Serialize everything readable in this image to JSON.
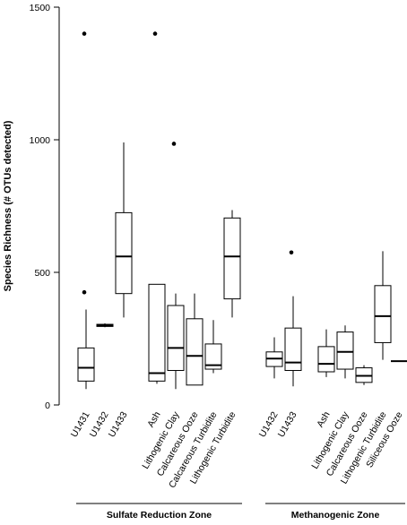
{
  "chart_data": {
    "type": "boxplot",
    "ylabel": "Species Richness (# OTUs detected)",
    "ylim": [
      0,
      1500
    ],
    "y_ticks": [
      0,
      500,
      1000,
      1500
    ],
    "grid": false,
    "groups": [
      {
        "name": "Sulfate Reduction Zone",
        "categories": [
          {
            "label": "U1431",
            "whisker_low": 60,
            "q1": 90,
            "median": 140,
            "q3": 215,
            "whisker_high": 360,
            "outliers": [
              1400,
              425
            ]
          },
          {
            "label": "U1432",
            "whisker_low": 293,
            "q1": 296,
            "median": 300,
            "q3": 304,
            "whisker_high": 308,
            "outliers": []
          },
          {
            "label": "U1433",
            "whisker_low": 330,
            "q1": 420,
            "median": 560,
            "q3": 725,
            "whisker_high": 990,
            "outliers": []
          },
          {
            "label": "Ash",
            "whisker_low": 80,
            "q1": 90,
            "median": 120,
            "q3": 455,
            "whisker_high": 455,
            "outliers": [
              1400
            ]
          },
          {
            "label": "Lithogenic Clay",
            "whisker_low": 60,
            "q1": 130,
            "median": 215,
            "q3": 375,
            "whisker_high": 420,
            "outliers": [
              985
            ]
          },
          {
            "label": "Calcareous Ooze",
            "whisker_low": 75,
            "q1": 75,
            "median": 185,
            "q3": 325,
            "whisker_high": 420,
            "outliers": []
          },
          {
            "label": "Calcareous Turbidite",
            "whisker_low": 120,
            "q1": 135,
            "median": 150,
            "q3": 230,
            "whisker_high": 320,
            "outliers": []
          },
          {
            "label": "Lithogenic Turbidite",
            "whisker_low": 330,
            "q1": 400,
            "median": 560,
            "q3": 705,
            "whisker_high": 735,
            "outliers": []
          }
        ]
      },
      {
        "name": "Methanogenic Zone",
        "categories": [
          {
            "label": "U1432",
            "whisker_low": 100,
            "q1": 145,
            "median": 175,
            "q3": 200,
            "whisker_high": 255,
            "outliers": []
          },
          {
            "label": "U1433",
            "whisker_low": 70,
            "q1": 130,
            "median": 160,
            "q3": 290,
            "whisker_high": 410,
            "outliers": [
              575
            ]
          },
          {
            "label": "Ash",
            "whisker_low": 105,
            "q1": 125,
            "median": 155,
            "q3": 220,
            "whisker_high": 285,
            "outliers": []
          },
          {
            "label": "Lithogenic Clay",
            "whisker_low": 100,
            "q1": 135,
            "median": 200,
            "q3": 275,
            "whisker_high": 300,
            "outliers": []
          },
          {
            "label": "Calcareous Ooze",
            "whisker_low": 75,
            "q1": 85,
            "median": 110,
            "q3": 140,
            "whisker_high": 150,
            "outliers": []
          },
          {
            "label": "Lithogenic Turbidite",
            "whisker_low": 170,
            "q1": 235,
            "median": 335,
            "q3": 450,
            "whisker_high": 580,
            "outliers": []
          },
          {
            "label": "Siliceous Ooze",
            "whisker_low": 165,
            "q1": 165,
            "median": 165,
            "q3": 165,
            "whisker_high": 165,
            "outliers": []
          }
        ]
      }
    ]
  }
}
